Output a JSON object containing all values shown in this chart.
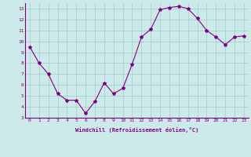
{
  "x": [
    0,
    1,
    2,
    3,
    4,
    5,
    6,
    7,
    8,
    9,
    10,
    11,
    12,
    13,
    14,
    15,
    16,
    17,
    18,
    19,
    20,
    21,
    22,
    23
  ],
  "y": [
    9.5,
    8.0,
    7.0,
    5.2,
    4.6,
    4.6,
    3.4,
    4.5,
    6.2,
    5.2,
    5.7,
    7.9,
    10.4,
    11.1,
    12.9,
    13.1,
    13.2,
    13.0,
    12.1,
    11.0,
    10.4,
    9.7,
    10.4,
    10.5
  ],
  "line_color": "#800080",
  "marker": "*",
  "marker_size": 3,
  "bg_color": "#cceaea",
  "grid_color": "#aacfcf",
  "xlabel": "Windchill (Refroidissement éolien,°C)",
  "xlabel_color": "#800080",
  "tick_color": "#800080",
  "xlim": [
    -0.5,
    23.5
  ],
  "ylim": [
    3,
    13.5
  ],
  "yticks": [
    3,
    4,
    5,
    6,
    7,
    8,
    9,
    10,
    11,
    12,
    13
  ],
  "xticks": [
    0,
    1,
    2,
    3,
    4,
    5,
    6,
    7,
    8,
    9,
    10,
    11,
    12,
    13,
    14,
    15,
    16,
    17,
    18,
    19,
    20,
    21,
    22,
    23
  ],
  "figsize": [
    3.2,
    2.0
  ],
  "dpi": 100
}
